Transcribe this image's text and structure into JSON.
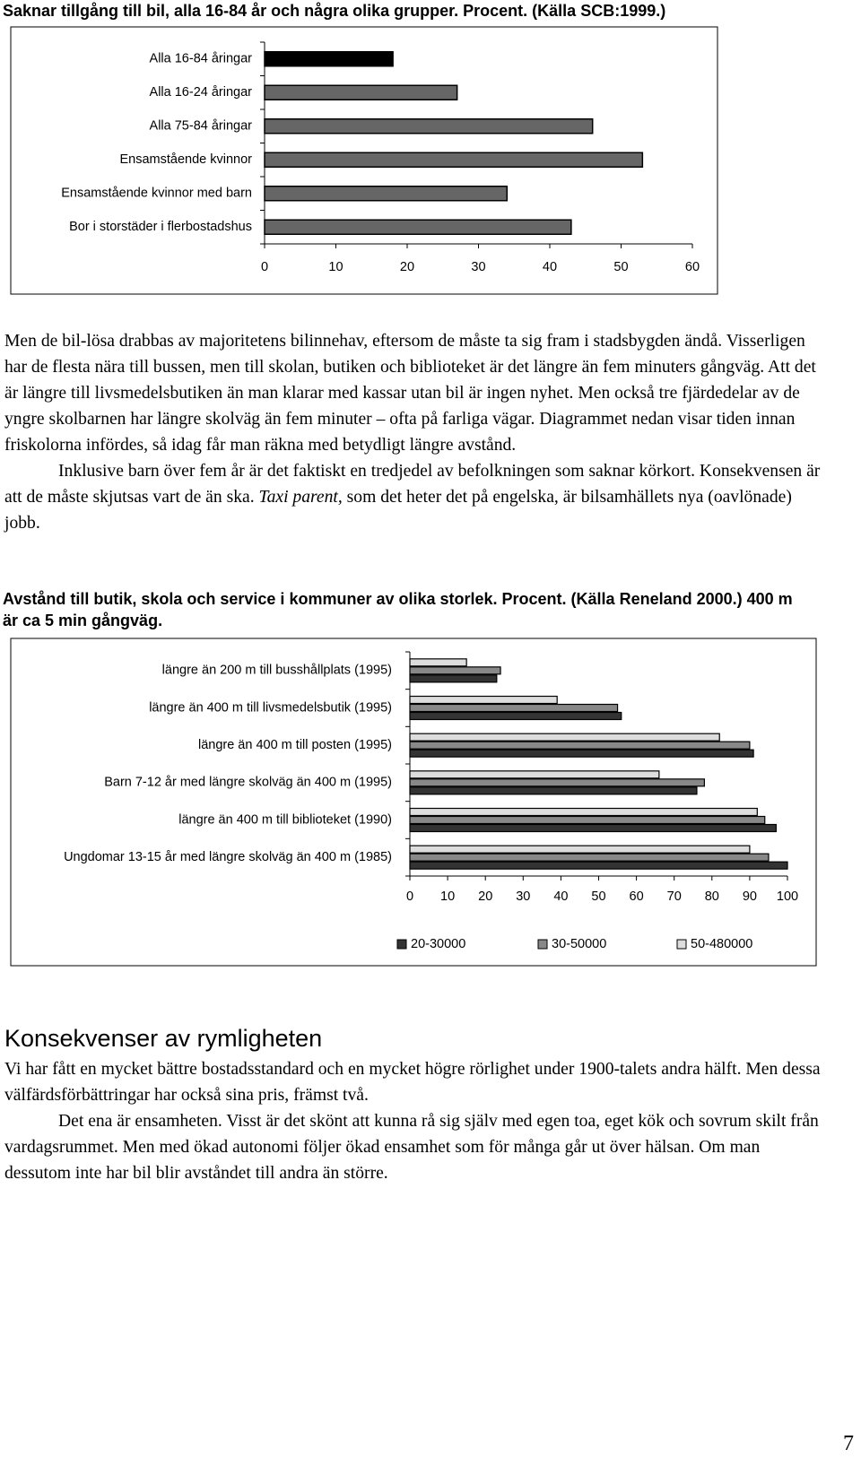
{
  "chart_data": [
    {
      "type": "hbar",
      "title": "Saknar tillgång till bil, alla 16-84 år och några olika grupper. Procent. (Källa SCB:1999.)",
      "categories": [
        "Alla 16-84 åringar",
        "Alla 16-24 åringar",
        "Alla 75-84 åringar",
        "Ensamstående kvinnor",
        "Ensamstående kvinnor med barn",
        "Bor i storstäder i flerbostadshus"
      ],
      "values": [
        18,
        27,
        46,
        53,
        34,
        43
      ],
      "colors": [
        "#000000",
        "#666666",
        "#666666",
        "#666666",
        "#666666",
        "#666666"
      ],
      "xlim": [
        0,
        60
      ],
      "xticks": [
        0,
        10,
        20,
        30,
        40,
        50,
        60
      ],
      "grid": false
    },
    {
      "type": "hbar",
      "title": "Avstånd till butik, skola och service i kommuner av olika storlek. Procent. (Källa Reneland 2000.) 400 m är ca 5 min gångväg.",
      "categories": [
        "längre än 200 m till busshållplats (1995)",
        "längre än 400 m till livsmedelsbutik (1995)",
        "längre än 400 m till posten (1995)",
        "Barn 7-12 år med längre skolväg än 400 m (1995)",
        "längre än 400 m till biblioteket (1990)",
        "Ungdomar 13-15 år med längre skolväg än 400 m (1985)"
      ],
      "series": [
        {
          "name": "20-30000",
          "color": "#333333",
          "values": [
            23,
            56,
            91,
            76,
            97,
            100
          ]
        },
        {
          "name": "30-50000",
          "color": "#888888",
          "values": [
            24,
            55,
            90,
            78,
            94,
            95
          ]
        },
        {
          "name": "50-480000",
          "color": "#dddddd",
          "values": [
            15,
            39,
            82,
            66,
            92,
            90
          ]
        }
      ],
      "xlim": [
        0,
        100
      ],
      "xticks": [
        0,
        10,
        20,
        30,
        40,
        50,
        60,
        70,
        80,
        90,
        100
      ],
      "grid": false,
      "legend": "bottom"
    }
  ],
  "body": {
    "paragraph1": "Men de bil-lösa drabbas av majoritetens bilinnehav, eftersom de måste ta sig fram i stadsbygden ändå. Visserligen har de flesta nära till bussen, men till skolan, butiken och biblioteket är det längre än fem minuters gångväg. Att det är längre till livsmedelsbutiken än man klarar med kassar utan bil är ingen nyhet. Men också tre fjärdedelar av de yngre skolbarnen har längre skolväg än fem minuter – ofta på farliga vägar. Diagrammet nedan visar tiden innan friskolorna infördes, så idag får man räkna med betydligt längre avstånd.",
    "paragraph2": [
      "Inklusive barn över fem år är det faktiskt en tredjedel av befolkningen som saknar körkort. Konsekvensen är att de måste skjutsas vart de än ska. ",
      "Taxi parent,",
      " som det heter det på engelska, är bilsamhällets nya (oavlönade) jobb."
    ],
    "heading": "Konsekvenser av rymligheten",
    "paragraph3": "Vi har fått en mycket bättre bostadsstandard och en mycket högre rörlighet under 1900-talets andra hälft. Men dessa välfärdsförbättringar har också sina pris, främst två.",
    "paragraph4": "Det ena är ensamheten. Visst är det skönt att kunna rå sig själv med egen toa, eget kök och sovrum skilt från vardagsrummet.  Men med ökad autonomi följer ökad ensamhet som för många går ut över hälsan. Om man dessutom inte har bil blir avståndet till andra än större.",
    "page_number": "7"
  }
}
